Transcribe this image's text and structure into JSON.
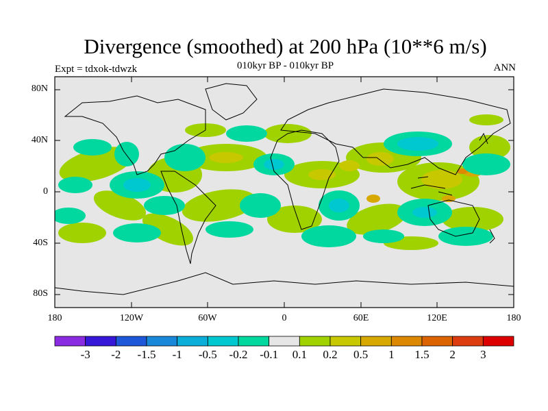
{
  "title": "Divergence (smoothed) at 200 hPa (10**6 m/s)",
  "subtitle": "010kyr BP - 010kyr BP",
  "left_label": "Expt = tdxok-tdwzk",
  "right_label": "ANN",
  "lat_ticks": [
    "80N",
    "40N",
    "0",
    "40S",
    "80S"
  ],
  "lon_ticks": [
    "180",
    "120W",
    "60W",
    "0",
    "60E",
    "120E",
    "180"
  ],
  "colorbar": {
    "colors": [
      "#8a2be2",
      "#3818d8",
      "#1e58d8",
      "#1a88d8",
      "#0aaed8",
      "#00c8d0",
      "#00d8a0",
      "#e6e6e6",
      "#a0d200",
      "#c8c800",
      "#d6a800",
      "#dc8800",
      "#dc6400",
      "#dc3c10",
      "#dc0000"
    ],
    "labels": [
      "-3",
      "-2",
      "-1.5",
      "-1",
      "-0.5",
      "-0.2",
      "-0.1",
      "0.1",
      "0.2",
      "0.5",
      "1",
      "1.5",
      "2",
      "3"
    ]
  }
}
